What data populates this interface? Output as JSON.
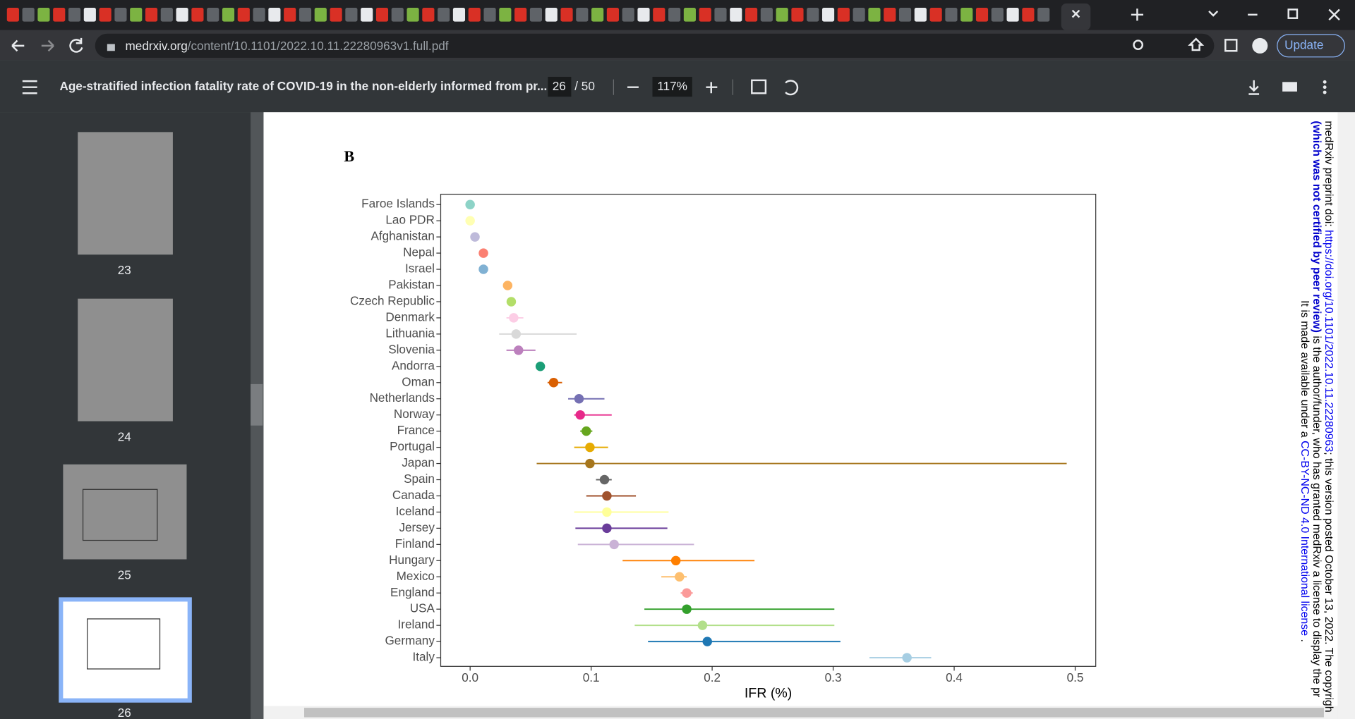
{
  "browser": {
    "url_host": "medrxiv.org",
    "url_path": "/content/10.1101/2022.10.11.22280963v1.full.pdf",
    "update_button": "Update"
  },
  "pdf_toolbar": {
    "title": "Age-stratified infection fatality rate of COVID-19 in the non-elderly informed from pr...",
    "page": "26",
    "page_count": "/ 50",
    "zoom": "117%"
  },
  "thumbnails": [
    "23",
    "24",
    "25",
    "26"
  ],
  "preprint_notice": {
    "line1": [
      "medRxiv preprint doi: ",
      "https://doi.org/10.1101/2022.10.11.22280963",
      "; this version posted October 13, 2022. The copyrigh"
    ],
    "line2": [
      "(which was not certified by peer review)",
      " is the author/funder, who has granted medRxiv a license to display the pr"
    ],
    "line3": [
      "It is made available under a ",
      "CC-BY-NC-ND 4.0 International license",
      " ."
    ]
  },
  "chart_data": {
    "type": "errorbar_dot",
    "panel_label": "B",
    "x_label": "IFR (%)",
    "categories": [
      "Faroe Islands",
      "Lao PDR",
      "Afghanistan",
      "Nepal",
      "Israel",
      "Pakistan",
      "Czech Republic",
      "Denmark",
      "Lithuania",
      "Slovenia",
      "Andorra",
      "Oman",
      "Netherlands",
      "Norway",
      "France",
      "Portugal",
      "Japan",
      "Spain",
      "Canada",
      "Iceland",
      "Jersey",
      "Finland",
      "Hungary",
      "Mexico",
      "England",
      "USA",
      "Ireland",
      "Germany",
      "Italy"
    ],
    "values": [
      0.0,
      0.0,
      0.004,
      0.011,
      0.011,
      0.031,
      0.034,
      0.036,
      0.038,
      0.04,
      0.058,
      0.069,
      0.09,
      0.091,
      0.096,
      0.099,
      0.099,
      0.111,
      0.113,
      0.113,
      0.113,
      0.119,
      0.17,
      0.173,
      0.179,
      0.179,
      0.192,
      0.196,
      0.361
    ],
    "lower": [
      null,
      null,
      null,
      null,
      null,
      null,
      null,
      0.03,
      0.024,
      0.03,
      null,
      0.064,
      0.081,
      0.086,
      0.091,
      0.086,
      0.055,
      0.104,
      0.096,
      0.086,
      0.087,
      0.089,
      0.126,
      0.158,
      0.174,
      0.144,
      0.136,
      0.147,
      0.33
    ],
    "upper": [
      null,
      null,
      null,
      null,
      null,
      null,
      null,
      0.044,
      0.088,
      0.054,
      null,
      0.076,
      0.111,
      0.117,
      0.101,
      0.114,
      0.493,
      0.117,
      0.137,
      0.164,
      0.163,
      0.185,
      0.235,
      0.179,
      0.184,
      0.301,
      0.301,
      0.306,
      0.381
    ],
    "colors": [
      "#8dd3c7",
      "#ffffb3",
      "#bebada",
      "#fb8072",
      "#80b1d3",
      "#fdb462",
      "#b3de69",
      "#fccde5",
      "#d9d9d9",
      "#bc80bd",
      "#1b9e77",
      "#d95f02",
      "#7570b3",
      "#e7298a",
      "#66a61e",
      "#e6ab02",
      "#a6761d",
      "#666666",
      "#a0522d",
      "#ffff99",
      "#6a3d9a",
      "#cab2d6",
      "#ff7f00",
      "#fdbf6f",
      "#fb9a99",
      "#33a02c",
      "#b2df8a",
      "#1f78b4",
      "#a6cee3"
    ],
    "xlim": [
      -0.0243,
      0.517
    ],
    "xticks": [
      {
        "value": 0,
        "label": "0.0"
      },
      0.1,
      0.2,
      0.3,
      0.4,
      0.5
    ]
  }
}
